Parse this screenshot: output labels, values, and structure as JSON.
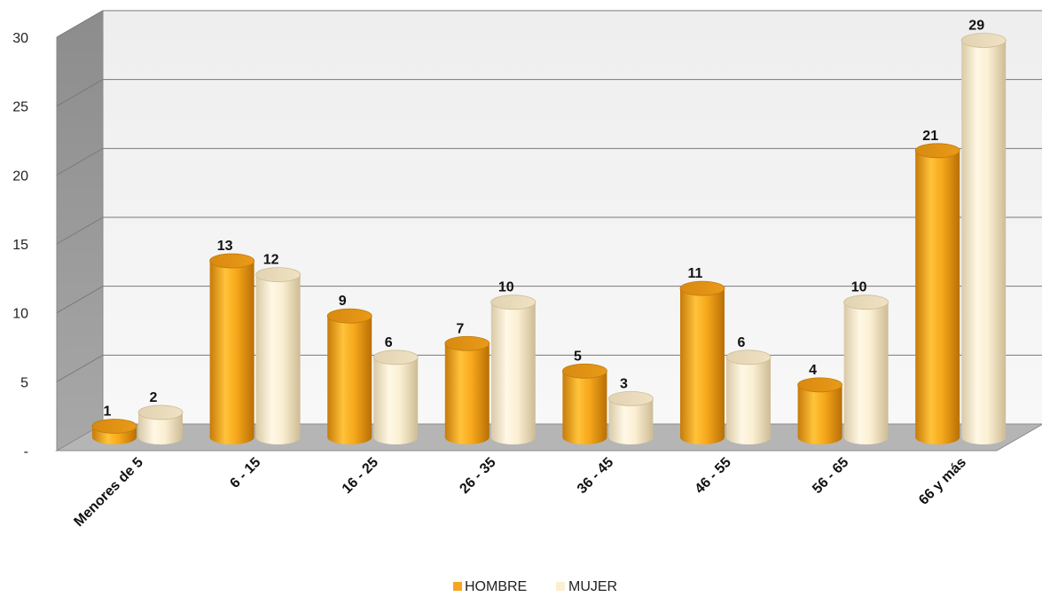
{
  "chart_data": {
    "type": "bar",
    "title": "",
    "xlabel": "",
    "ylabel": "",
    "categories": [
      "Menores de 5",
      "6 - 15",
      "16 - 25",
      "26 - 35",
      "36 - 45",
      "46 - 55",
      "56 - 65",
      "66 y más"
    ],
    "series": [
      {
        "name": "HOMBRE",
        "values": [
          1,
          13,
          9,
          7,
          5,
          11,
          4,
          21
        ],
        "color": "#F5A623"
      },
      {
        "name": "MUJER",
        "values": [
          2,
          12,
          6,
          10,
          3,
          6,
          10,
          29
        ],
        "color": "#FBEFD2"
      }
    ],
    "ylim": [
      0,
      30
    ],
    "yticks": [
      "-",
      "5",
      "10",
      "15",
      "20",
      "25",
      "30"
    ],
    "grid": true,
    "legend": "bottom-center",
    "style": "3d-cylinder"
  }
}
